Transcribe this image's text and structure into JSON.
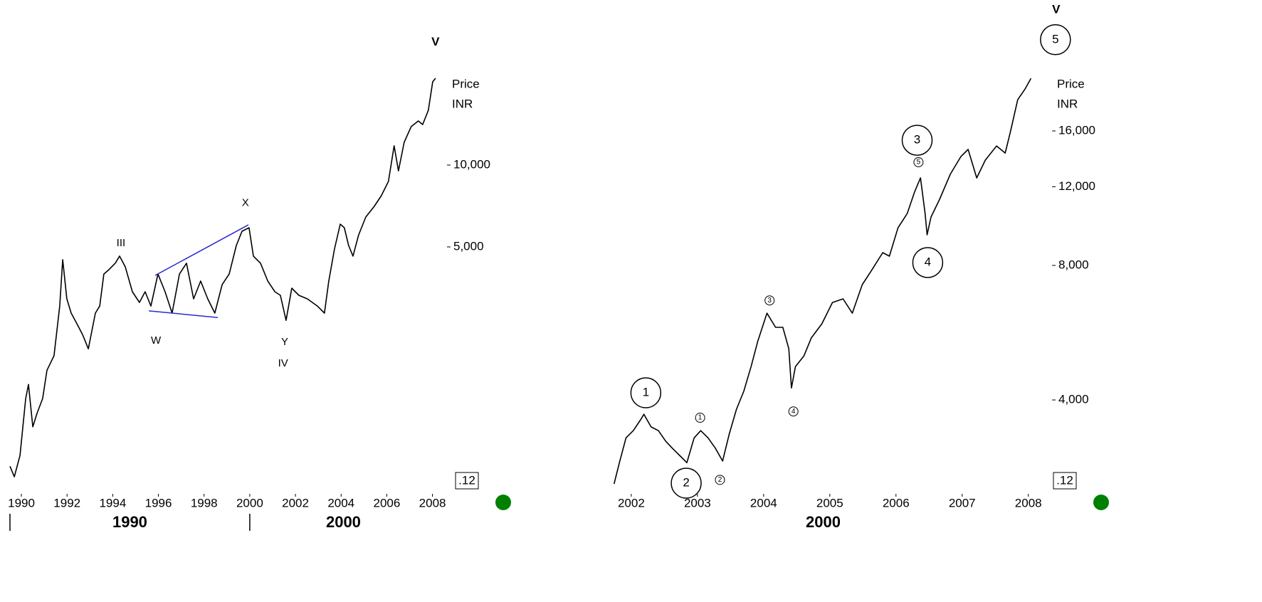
{
  "chart_data": [
    {
      "type": "line",
      "log_y": true,
      "color": "#000000",
      "y_label": "Price",
      "y_unit": "INR",
      "badge": ".12",
      "xlim": [
        1989.5,
        2008.2
      ],
      "xticks": [
        1990,
        1992,
        1994,
        1996,
        1998,
        2000,
        2002,
        2004,
        2006,
        2008
      ],
      "ylim": [
        633,
        22150
      ],
      "yticks": [
        {
          "value": 5000,
          "label": "5,000"
        },
        {
          "value": 10000,
          "label": "10,000"
        }
      ],
      "decades": [
        {
          "label": "1990",
          "start": 1989.5
        },
        {
          "label": "2000",
          "start": 2000
        }
      ],
      "x": [
        1989.5,
        1989.69,
        1989.94,
        1990.19,
        1990.31,
        1990.5,
        1990.69,
        1990.93,
        1991.12,
        1991.43,
        1991.68,
        1991.81,
        1991.99,
        1992.18,
        1992.43,
        1992.68,
        1992.93,
        1993.24,
        1993.43,
        1993.61,
        1993.8,
        1994.11,
        1994.3,
        1994.55,
        1994.86,
        1995.17,
        1995.42,
        1995.67,
        1995.98,
        1996.29,
        1996.6,
        1996.92,
        1997.23,
        1997.54,
        1997.85,
        1998.16,
        1998.47,
        1998.79,
        1999.1,
        1999.41,
        1999.66,
        1999.97,
        2000.16,
        2000.47,
        2000.79,
        2001.1,
        2001.34,
        2001.59,
        2001.84,
        2002.15,
        2002.52,
        2002.96,
        2003.27,
        2003.46,
        2003.71,
        2003.96,
        2004.14,
        2004.33,
        2004.52,
        2004.77,
        2005.08,
        2005.45,
        2005.76,
        2006.07,
        2006.32,
        2006.51,
        2006.76,
        2007.07,
        2007.38,
        2007.57,
        2007.82,
        2008.01,
        2008.13
      ],
      "values": [
        780,
        714,
        855,
        1385,
        1560,
        1090,
        1225,
        1385,
        1760,
        1990,
        3030,
        4490,
        3220,
        2855,
        2610,
        2380,
        2110,
        2855,
        3030,
        3975,
        4100,
        4355,
        4625,
        4225,
        3420,
        3125,
        3420,
        3030,
        3975,
        3420,
        2855,
        3975,
        4355,
        3220,
        3745,
        3220,
        2855,
        3635,
        3975,
        5060,
        5710,
        5885,
        4625,
        4355,
        3745,
        3420,
        3320,
        2685,
        3525,
        3320,
        3220,
        3030,
        2855,
        3745,
        4910,
        6065,
        5885,
        5060,
        4625,
        5540,
        6440,
        7050,
        7715,
        8705,
        11770,
        9525,
        12125,
        13850,
        14530,
        14100,
        15910,
        20240,
        20860
      ],
      "trendline_color": "#2a2acc",
      "trendlines": [
        {
          "x": [
            1995.86,
            1999.94
          ],
          "y": [
            3930,
            6030
          ]
        },
        {
          "x": [
            1995.58,
            1998.6
          ],
          "y": [
            2910,
            2750
          ]
        }
      ],
      "annotations": [
        {
          "label": "III",
          "x": 1994.36,
          "y": 5150,
          "style": "plain"
        },
        {
          "label": "X",
          "x": 1999.81,
          "y": 7250,
          "style": "plain"
        },
        {
          "label": "W",
          "x": 1995.89,
          "y": 2260,
          "style": "plain"
        },
        {
          "label": "Y",
          "x": 2001.53,
          "y": 2230,
          "style": "plain"
        },
        {
          "label": "IV",
          "x": 2001.46,
          "y": 1860,
          "style": "plain"
        },
        {
          "label": "V",
          "x": 2008.13,
          "y": 28300,
          "style": "bold"
        }
      ]
    },
    {
      "type": "line",
      "log_y": true,
      "color": "#000000",
      "y_label": "Price",
      "y_unit": "INR",
      "badge": ".12",
      "xlim": [
        2001.7,
        2008.1
      ],
      "xticks": [
        2002,
        2003,
        2004,
        2005,
        2006,
        2007,
        2008
      ],
      "ylim": [
        2502,
        21770
      ],
      "yticks": [
        {
          "value": 4000,
          "label": "4,000"
        },
        {
          "value": 8000,
          "label": "8,000"
        },
        {
          "value": 12000,
          "label": "12,000"
        },
        {
          "value": 16000,
          "label": "16,000"
        }
      ],
      "decades": [
        {
          "label": "2000",
          "start": 2000
        }
      ],
      "x": [
        2001.74,
        2001.82,
        2001.92,
        2002.03,
        2002.14,
        2002.19,
        2002.3,
        2002.41,
        2002.52,
        2002.62,
        2002.73,
        2002.84,
        2002.95,
        2003.05,
        2003.16,
        2003.27,
        2003.38,
        2003.48,
        2003.59,
        2003.7,
        2003.81,
        2003.91,
        2004.05,
        2004.18,
        2004.29,
        2004.38,
        2004.42,
        2004.48,
        2004.61,
        2004.72,
        2004.88,
        2005.04,
        2005.2,
        2005.34,
        2005.49,
        2005.63,
        2005.8,
        2005.9,
        2006.03,
        2006.17,
        2006.28,
        2006.37,
        2006.44,
        2006.47,
        2006.53,
        2006.66,
        2006.82,
        2006.98,
        2007.09,
        2007.22,
        2007.35,
        2007.52,
        2007.65,
        2007.73,
        2007.84,
        2007.95,
        2008.04
      ],
      "values": [
        2595,
        2895,
        3290,
        3415,
        3610,
        3715,
        3480,
        3415,
        3235,
        3120,
        3005,
        2895,
        3290,
        3415,
        3290,
        3120,
        2920,
        3355,
        3815,
        4180,
        4750,
        5405,
        6255,
        5815,
        5815,
        5210,
        4255,
        4750,
        5020,
        5505,
        5920,
        6610,
        6735,
        6255,
        7245,
        7795,
        8545,
        8390,
        9710,
        10455,
        11670,
        12560,
        10455,
        9370,
        10265,
        11250,
        12790,
        14015,
        14545,
        12560,
        13765,
        14810,
        14275,
        15940,
        18790,
        19855,
        20980
      ],
      "annotations": [
        {
          "label": "1",
          "x": 2002.22,
          "y": 4150,
          "style": "circle"
        },
        {
          "label": "2",
          "x": 2002.83,
          "y": 2605,
          "style": "circle"
        },
        {
          "label": "3",
          "x": 2006.32,
          "y": 15250,
          "style": "circle"
        },
        {
          "label": "4",
          "x": 2006.48,
          "y": 8120,
          "style": "circle"
        },
        {
          "label": "5",
          "x": 2008.41,
          "y": 25600,
          "style": "circle"
        },
        {
          "label": "V",
          "x": 2008.42,
          "y": 29850,
          "style": "bold"
        },
        {
          "label": "1",
          "x": 2003.04,
          "y": 3650,
          "style": "small-circle"
        },
        {
          "label": "2",
          "x": 2003.34,
          "y": 2650,
          "style": "small-circle"
        },
        {
          "label": "3",
          "x": 2004.09,
          "y": 6680,
          "style": "small-circle"
        },
        {
          "label": "4",
          "x": 2004.45,
          "y": 3770,
          "style": "small-circle"
        },
        {
          "label": "5",
          "x": 2006.34,
          "y": 13620,
          "style": "small-circle"
        }
      ]
    }
  ]
}
